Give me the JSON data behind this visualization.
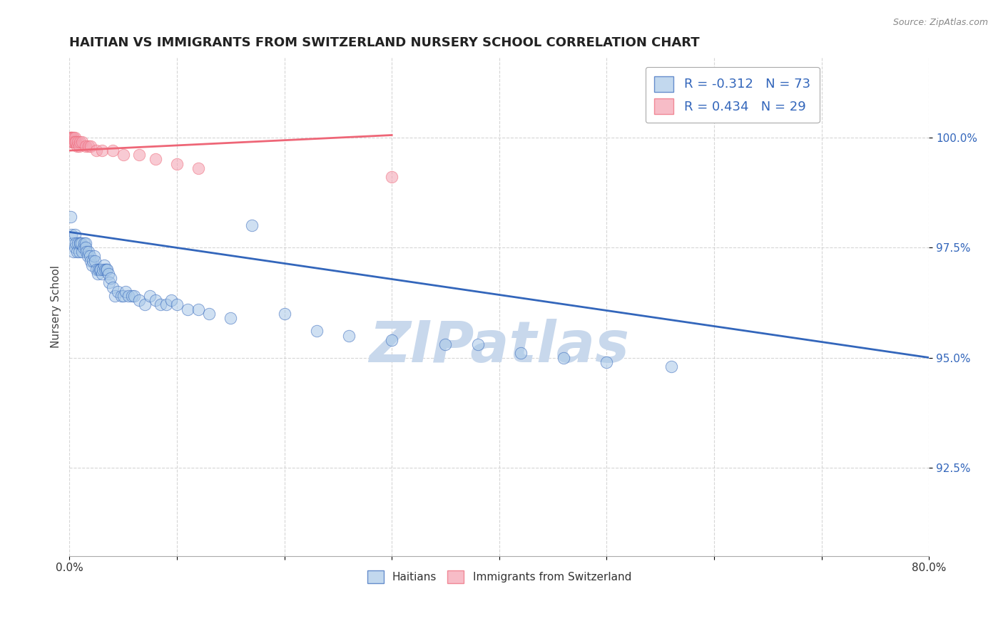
{
  "title": "HAITIAN VS IMMIGRANTS FROM SWITZERLAND NURSERY SCHOOL CORRELATION CHART",
  "source": "Source: ZipAtlas.com",
  "ylabel": "Nursery School",
  "ytick_labels": [
    "92.5%",
    "95.0%",
    "97.5%",
    "100.0%"
  ],
  "ytick_values": [
    0.925,
    0.95,
    0.975,
    1.0
  ],
  "xlim": [
    0.0,
    0.8
  ],
  "ylim": [
    0.905,
    1.018
  ],
  "blue_color": "#A8C8E8",
  "pink_color": "#F4A0B0",
  "blue_line_color": "#3366BB",
  "pink_line_color": "#EE6677",
  "legend_R_blue": "-0.312",
  "legend_N_blue": "73",
  "legend_R_pink": "0.434",
  "legend_N_pink": "29",
  "blue_scatter_x": [
    0.001,
    0.002,
    0.003,
    0.004,
    0.005,
    0.005,
    0.006,
    0.007,
    0.008,
    0.009,
    0.01,
    0.01,
    0.011,
    0.012,
    0.013,
    0.014,
    0.015,
    0.015,
    0.016,
    0.017,
    0.018,
    0.019,
    0.02,
    0.021,
    0.022,
    0.023,
    0.024,
    0.025,
    0.026,
    0.027,
    0.028,
    0.029,
    0.03,
    0.031,
    0.032,
    0.033,
    0.034,
    0.035,
    0.036,
    0.037,
    0.038,
    0.04,
    0.042,
    0.045,
    0.048,
    0.05,
    0.052,
    0.055,
    0.058,
    0.06,
    0.065,
    0.07,
    0.075,
    0.08,
    0.085,
    0.09,
    0.095,
    0.1,
    0.11,
    0.12,
    0.13,
    0.15,
    0.17,
    0.2,
    0.23,
    0.26,
    0.3,
    0.35,
    0.38,
    0.42,
    0.46,
    0.5,
    0.56
  ],
  "blue_scatter_y": [
    0.982,
    0.978,
    0.976,
    0.974,
    0.978,
    0.975,
    0.976,
    0.974,
    0.976,
    0.974,
    0.976,
    0.976,
    0.976,
    0.974,
    0.975,
    0.976,
    0.976,
    0.975,
    0.974,
    0.973,
    0.974,
    0.973,
    0.972,
    0.971,
    0.972,
    0.973,
    0.972,
    0.97,
    0.969,
    0.97,
    0.97,
    0.97,
    0.969,
    0.97,
    0.971,
    0.97,
    0.97,
    0.97,
    0.969,
    0.967,
    0.968,
    0.966,
    0.964,
    0.965,
    0.964,
    0.964,
    0.965,
    0.964,
    0.964,
    0.964,
    0.963,
    0.962,
    0.964,
    0.963,
    0.962,
    0.962,
    0.963,
    0.962,
    0.961,
    0.961,
    0.96,
    0.959,
    0.98,
    0.96,
    0.956,
    0.955,
    0.954,
    0.953,
    0.953,
    0.951,
    0.95,
    0.949,
    0.948
  ],
  "pink_scatter_x": [
    0.001,
    0.001,
    0.002,
    0.002,
    0.002,
    0.003,
    0.003,
    0.004,
    0.004,
    0.005,
    0.005,
    0.006,
    0.007,
    0.008,
    0.009,
    0.01,
    0.012,
    0.015,
    0.018,
    0.02,
    0.025,
    0.03,
    0.04,
    0.05,
    0.065,
    0.08,
    0.1,
    0.12,
    0.3
  ],
  "pink_scatter_y": [
    1.0,
    1.0,
    1.0,
    1.0,
    0.999,
    1.0,
    0.999,
    1.0,
    0.999,
    1.0,
    0.999,
    0.999,
    0.998,
    0.999,
    0.998,
    0.999,
    0.999,
    0.998,
    0.998,
    0.998,
    0.997,
    0.997,
    0.997,
    0.996,
    0.996,
    0.995,
    0.994,
    0.993,
    0.991
  ],
  "watermark_text": "ZIPatlas",
  "watermark_color": "#C8D8EC",
  "grid_color": "#CCCCCC",
  "background_color": "#FFFFFF"
}
